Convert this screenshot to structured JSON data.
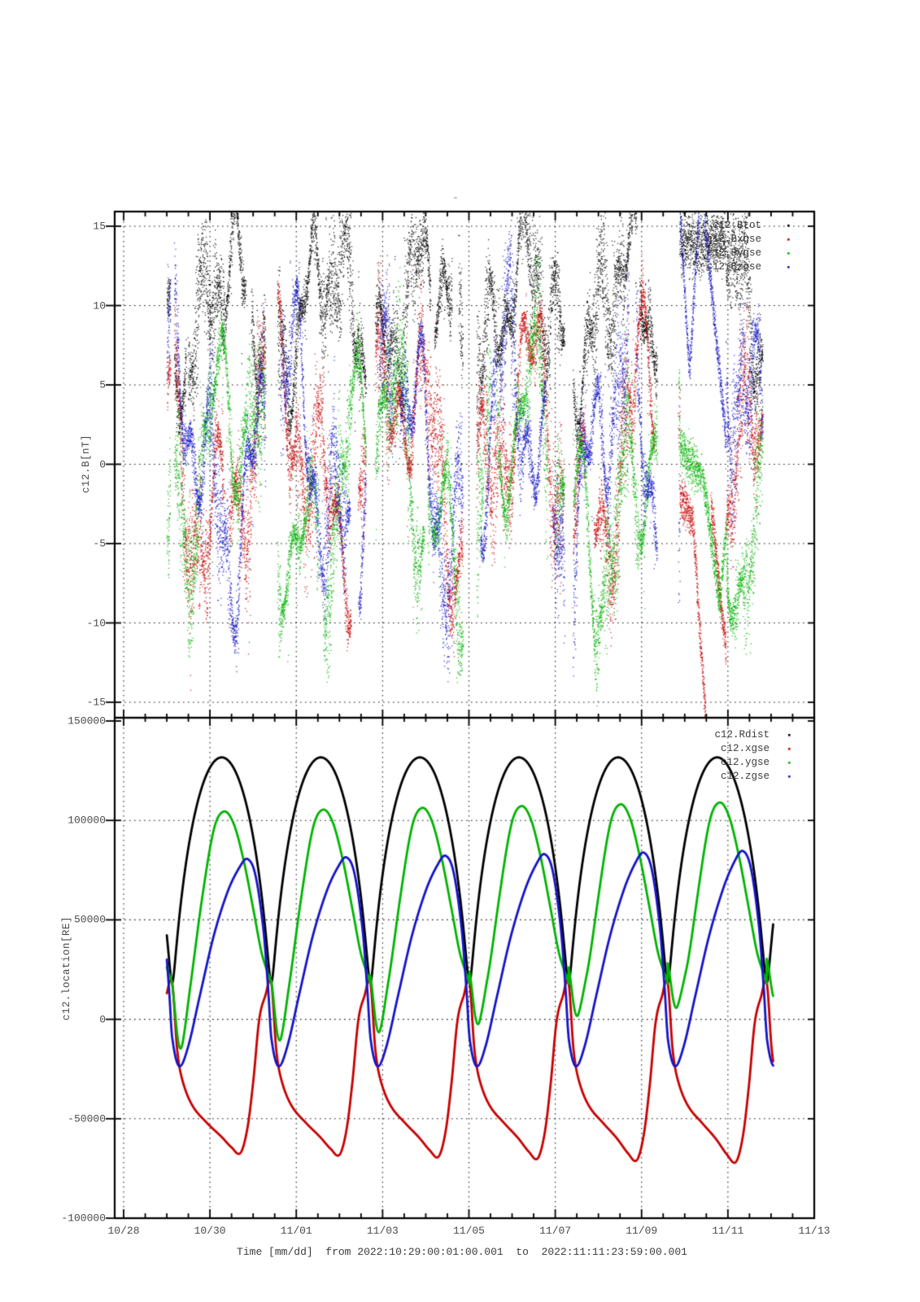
{
  "title": "-",
  "xaxis": {
    "label": "Time [mm/dd]  from 2022:10:29:00:01:00.001  to  2022:11:11:23:59:00.001",
    "ticks": [
      "10/28",
      "10/30",
      "11/01",
      "11/03",
      "11/05",
      "11/07",
      "11/09",
      "11/11",
      "11/13"
    ],
    "tick_days": [
      0,
      2,
      4,
      6,
      8,
      10,
      12,
      14,
      16
    ],
    "minor_step_days": 0.5
  },
  "panels": {
    "field": {
      "ylabel": "c12.B[nT]",
      "yticks": {
        "labels": [
          "15",
          "10",
          "5",
          "0",
          "-5",
          "-10",
          "-15"
        ],
        "values": [
          15,
          10,
          5,
          0,
          -5,
          -10,
          -15
        ]
      },
      "legend": [
        {
          "label": "c12.Btot",
          "color": "#000000"
        },
        {
          "label": "c12.Bxgse",
          "color": "#c80000"
        },
        {
          "label": "c12.Bygse",
          "color": "#00b400"
        },
        {
          "label": "c12.Bzgse",
          "color": "#1414c8"
        }
      ]
    },
    "location": {
      "ylabel": "c12.location[RE]",
      "yticks": {
        "labels": [
          "150000",
          "100000",
          "50000",
          "0",
          "-50000",
          "-100000"
        ],
        "values": [
          150000,
          100000,
          50000,
          0,
          -50000,
          -100000
        ]
      },
      "legend": [
        {
          "label": "c12.Rdist",
          "color": "#000000"
        },
        {
          "label": "c12.xgse",
          "color": "#c80000"
        },
        {
          "label": "c12.ygse",
          "color": "#00b400"
        },
        {
          "label": "c12.zgse",
          "color": "#1414c8"
        }
      ]
    }
  },
  "chart_data": [
    {
      "type": "scatter",
      "panel": "field",
      "ylabel": "c12.B[nT]",
      "ylim": [
        -16,
        16
      ],
      "grid_values": [
        15,
        10,
        5,
        0,
        -5,
        -10,
        -15
      ],
      "time_start_day": 1.0007,
      "time_end_day": 15.0,
      "sample_step_days": 0.0022,
      "seed": 1337,
      "series": [
        {
          "name": "c12.Btot",
          "color": "#000000",
          "center": 9.5,
          "waves": [
            [
              3.2,
              2.296,
              1.2
            ],
            [
              2.6,
              0.83,
              0.4
            ],
            [
              1.8,
              0.37,
              2.1
            ]
          ],
          "amp_waves": [
            [
              1.0,
              1.55,
              0.3
            ],
            [
              0.85,
              0.21,
              1.7
            ]
          ],
          "amp_base": 1.1,
          "vmin": 0.3,
          "vmax": 15.92
        },
        {
          "name": "c12.Bxgse",
          "color": "#c80000",
          "center": 0.5,
          "waves": [
            [
              5.0,
              2.9,
              0.2
            ],
            [
              4.0,
              1.21,
              2.6
            ],
            [
              2.5,
              0.47,
              4.1
            ]
          ],
          "amp_waves": [
            [
              1.0,
              1.42,
              1.1
            ],
            [
              0.85,
              0.19,
              0.6
            ]
          ],
          "amp_base": 1.15,
          "vmin": -15.97,
          "vmax": 15.92
        },
        {
          "name": "c12.Bygse",
          "color": "#00b400",
          "center": -1.0,
          "waves": [
            [
              5.0,
              3.4,
              3.2
            ],
            [
              4.2,
              1.05,
              1.4
            ],
            [
              2.3,
              0.52,
              5.0
            ]
          ],
          "amp_waves": [
            [
              1.0,
              1.66,
              2.3
            ],
            [
              0.85,
              0.23,
              3.9
            ]
          ],
          "amp_base": 1.1,
          "vmin": -15.97,
          "vmax": 15.92
        },
        {
          "name": "c12.Bzgse",
          "color": "#1414c8",
          "center": 0.5,
          "waves": [
            [
              5.5,
              2.6,
              5.1
            ],
            [
              4.0,
              0.97,
              0.9
            ],
            [
              2.4,
              0.41,
              2.8
            ]
          ],
          "amp_waves": [
            [
              1.0,
              1.35,
              4.2
            ],
            [
              0.85,
              0.205,
              2.2
            ]
          ],
          "amp_base": 1.1,
          "vmin": -15.97,
          "vmax": 15.92
        }
      ],
      "gaps": {
        "perigee_days": [
          1.124,
          3.42,
          5.716,
          8.012,
          10.308,
          12.604,
          14.9
        ],
        "half_widths": [
          0.05,
          0.14,
          0.11,
          0.16,
          0.1,
          0.25,
          0.1
        ]
      },
      "calm_window": {
        "t0": 12.88,
        "t1": 13.95
      },
      "calm_segments": [
        {
          "series": "c12.Bzgse",
          "shape": "vee",
          "t0": 12.88,
          "t1": 13.32,
          "v0": 15.8,
          "vmid": 5.8,
          "v1": 15.8,
          "noise": 0.3
        },
        {
          "series": "c12.Bzgse",
          "shape": "line",
          "t0": 13.45,
          "t1": 13.95,
          "v0": 15.5,
          "v1": 1.5,
          "noise": 0.35
        },
        {
          "series": "c12.Bygse",
          "shape": "line",
          "t0": 12.88,
          "t1": 13.38,
          "v0": 1.2,
          "v1": -0.8,
          "noise": 0.9
        },
        {
          "series": "c12.Bygse",
          "shape": "line",
          "t0": 13.4,
          "t1": 13.8,
          "v0": -0.5,
          "v1": -8.8,
          "noise": 0.5
        },
        {
          "series": "c12.Bygse",
          "shape": "line",
          "t0": 13.8,
          "t1": 13.95,
          "v0": -8.8,
          "v1": -4.0,
          "noise": 0.5
        },
        {
          "series": "c12.Bxgse",
          "shape": "line",
          "t0": 12.88,
          "t1": 13.18,
          "v0": -2.0,
          "v1": -3.5,
          "noise": 0.8
        },
        {
          "series": "c12.Bxgse",
          "shape": "line",
          "t0": 13.18,
          "t1": 13.48,
          "v0": -3.5,
          "v1": -16.2,
          "noise": 0.4
        },
        {
          "series": "c12.Bxgse",
          "shape": "line",
          "t0": 13.6,
          "t1": 13.98,
          "v0": -2.5,
          "v1": -12.5,
          "noise": 0.5
        },
        {
          "series": "c12.Btot",
          "shape": "line",
          "t0": 12.88,
          "t1": 13.95,
          "v0": 13.8,
          "v1": 14.2,
          "noise": 1.2
        }
      ]
    },
    {
      "type": "line",
      "panel": "location",
      "ylabel": "c12.location[RE]",
      "ylim": [
        -100000,
        150000
      ],
      "grid_values": [
        100000,
        50000,
        0,
        -50000
      ],
      "time_start_day": 1.0007,
      "time_end_day": 15.05,
      "orbit": {
        "period_days": 2.296,
        "first_perigee_day": 1.124,
        "num_orbits": 7
      },
      "series": [
        {
          "name": "c12.Rdist",
          "color": "#000000",
          "model": "kepler",
          "semi_major": 75000,
          "eccentricity": 0.756,
          "perigee_value": 18300,
          "apogee_value": 131700,
          "drifts": []
        },
        {
          "name": "c12.xgse",
          "color": "#c80000",
          "model": "table",
          "keypoints": [
            [
              0.0,
              18500
            ],
            [
              0.05,
              -15000
            ],
            [
              0.1,
              -30000
            ],
            [
              0.2,
              -43000
            ],
            [
              0.35,
              -52000
            ],
            [
              0.5,
              -59000
            ],
            [
              0.6,
              -64000
            ],
            [
              0.69,
              -66500
            ],
            [
              0.76,
              -54000
            ],
            [
              0.82,
              -30000
            ],
            [
              0.878,
              0
            ],
            [
              0.94,
              12000
            ]
          ],
          "drifts": [
            {
              "amp": -900,
              "center": 0.69,
              "width": 0.2
            }
          ]
        },
        {
          "name": "c12.ygse",
          "color": "#00b400",
          "model": "table",
          "keypoints": [
            [
              0.0,
              17500
            ],
            [
              0.06,
              -11000
            ],
            [
              0.1,
              -13500
            ],
            [
              0.18,
              15000
            ],
            [
              0.3,
              60000
            ],
            [
              0.42,
              95000
            ],
            [
              0.52,
              104000
            ],
            [
              0.62,
              98000
            ],
            [
              0.72,
              80000
            ],
            [
              0.82,
              55000
            ],
            [
              0.9,
              34000
            ],
            [
              0.96,
              24000
            ]
          ],
          "drifts": [
            {
              "amp": 4100,
              "center": 0.08,
              "width": 0.1
            },
            {
              "amp": 900,
              "center": 0.52,
              "width": 0.2
            }
          ]
        },
        {
          "name": "c12.zgse",
          "color": "#1414c8",
          "model": "table",
          "keypoints": [
            [
              0.0,
              -9000
            ],
            [
              0.07,
              -23500
            ],
            [
              0.16,
              -14000
            ],
            [
              0.28,
              12000
            ],
            [
              0.42,
              42000
            ],
            [
              0.56,
              64000
            ],
            [
              0.68,
              76000
            ],
            [
              0.76,
              80000
            ],
            [
              0.84,
              72000
            ],
            [
              0.92,
              45000
            ],
            [
              0.97,
              14000
            ]
          ],
          "drifts": [
            {
              "amp": 800,
              "center": 0.76,
              "width": 0.2
            }
          ]
        }
      ]
    }
  ],
  "colors": {
    "background": "#ffffff",
    "axis": "#000000",
    "grid": "#000000",
    "tick_label": "#4a4a4a",
    "legend_text": "#3c3c3c",
    "series_black": "#000000",
    "series_red": "#c80000",
    "series_green": "#00b400",
    "series_blue": "#1414c8"
  }
}
